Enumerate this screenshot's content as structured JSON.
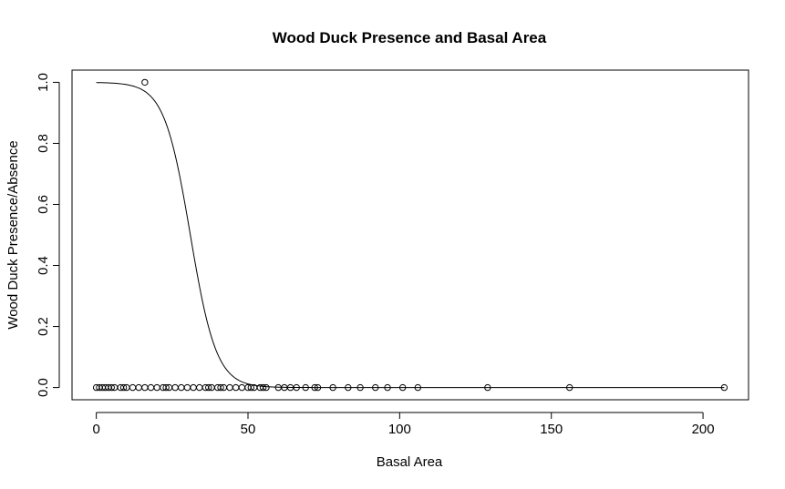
{
  "chart_data": {
    "type": "scatter",
    "title": "Wood Duck Presence and Basal Area",
    "xlabel": "Basal Area",
    "ylabel": "Wood Duck Presence/Absence",
    "xlim": [
      -8,
      215
    ],
    "ylim": [
      -0.04,
      1.04
    ],
    "x_ticks": [
      0,
      50,
      100,
      150,
      200
    ],
    "y_ticks": [
      0.0,
      0.2,
      0.4,
      0.6,
      0.8,
      1.0
    ],
    "x_tick_labels": [
      "0",
      "50",
      "100",
      "150",
      "200"
    ],
    "y_tick_labels": [
      "0.0",
      "0.2",
      "0.4",
      "0.6",
      "0.8",
      "1.0"
    ],
    "grid": false,
    "legend": "none",
    "point_color": "#000000",
    "points": [
      {
        "x": 0,
        "y": 0
      },
      {
        "x": 1,
        "y": 0
      },
      {
        "x": 2,
        "y": 0
      },
      {
        "x": 3,
        "y": 0
      },
      {
        "x": 4,
        "y": 0
      },
      {
        "x": 5,
        "y": 0
      },
      {
        "x": 6,
        "y": 0
      },
      {
        "x": 8,
        "y": 0
      },
      {
        "x": 9,
        "y": 0
      },
      {
        "x": 10,
        "y": 0
      },
      {
        "x": 12,
        "y": 0
      },
      {
        "x": 14,
        "y": 0
      },
      {
        "x": 16,
        "y": 0
      },
      {
        "x": 18,
        "y": 0
      },
      {
        "x": 20,
        "y": 0
      },
      {
        "x": 22,
        "y": 0
      },
      {
        "x": 23,
        "y": 0
      },
      {
        "x": 24,
        "y": 0
      },
      {
        "x": 26,
        "y": 0
      },
      {
        "x": 28,
        "y": 0
      },
      {
        "x": 30,
        "y": 0
      },
      {
        "x": 32,
        "y": 0
      },
      {
        "x": 34,
        "y": 0
      },
      {
        "x": 36,
        "y": 0
      },
      {
        "x": 37,
        "y": 0
      },
      {
        "x": 38,
        "y": 0
      },
      {
        "x": 40,
        "y": 0
      },
      {
        "x": 41,
        "y": 0
      },
      {
        "x": 42,
        "y": 0
      },
      {
        "x": 44,
        "y": 0
      },
      {
        "x": 46,
        "y": 0
      },
      {
        "x": 48,
        "y": 0
      },
      {
        "x": 50,
        "y": 0
      },
      {
        "x": 51,
        "y": 0
      },
      {
        "x": 52,
        "y": 0
      },
      {
        "x": 54,
        "y": 0
      },
      {
        "x": 55,
        "y": 0
      },
      {
        "x": 56,
        "y": 0
      },
      {
        "x": 60,
        "y": 0
      },
      {
        "x": 62,
        "y": 0
      },
      {
        "x": 64,
        "y": 0
      },
      {
        "x": 66,
        "y": 0
      },
      {
        "x": 69,
        "y": 0
      },
      {
        "x": 72,
        "y": 0
      },
      {
        "x": 73,
        "y": 0
      },
      {
        "x": 78,
        "y": 0
      },
      {
        "x": 83,
        "y": 0
      },
      {
        "x": 87,
        "y": 0
      },
      {
        "x": 92,
        "y": 0
      },
      {
        "x": 96,
        "y": 0
      },
      {
        "x": 101,
        "y": 0
      },
      {
        "x": 106,
        "y": 0
      },
      {
        "x": 129,
        "y": 0
      },
      {
        "x": 156,
        "y": 0
      },
      {
        "x": 207,
        "y": 0
      },
      {
        "x": 16,
        "y": 1
      }
    ],
    "fitted_curve": {
      "type": "logistic",
      "x_range": [
        0,
        207
      ],
      "midpoint": 31,
      "scale": 4.3
    }
  }
}
